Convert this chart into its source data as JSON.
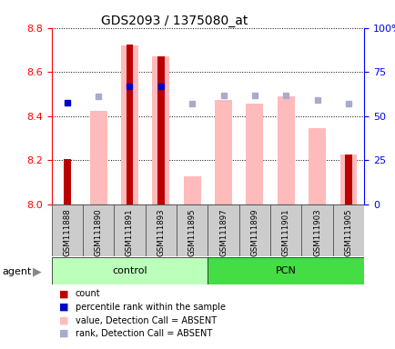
{
  "title": "GDS2093 / 1375080_at",
  "samples": [
    "GSM111888",
    "GSM111890",
    "GSM111891",
    "GSM111893",
    "GSM111895",
    "GSM111897",
    "GSM111899",
    "GSM111901",
    "GSM111903",
    "GSM111905"
  ],
  "red_bar_values": [
    8.205,
    8.0,
    8.725,
    8.67,
    8.0,
    8.0,
    8.0,
    8.0,
    8.0,
    8.225
  ],
  "pink_bar_values": [
    8.0,
    8.425,
    8.72,
    8.67,
    8.125,
    8.475,
    8.455,
    8.49,
    8.345,
    8.225
  ],
  "blue_dot_values": [
    8.46,
    null,
    8.535,
    8.535,
    null,
    null,
    null,
    null,
    null,
    null
  ],
  "lavender_dot_values": [
    null,
    8.49,
    null,
    null,
    8.455,
    8.495,
    8.495,
    8.495,
    8.475,
    8.455
  ],
  "ylim": [
    8.0,
    8.8
  ],
  "yticks_left": [
    8.0,
    8.2,
    8.4,
    8.6,
    8.8
  ],
  "yticks_right": [
    0,
    25,
    50,
    75,
    100
  ],
  "red_bar_color": "#bb0000",
  "pink_bar_color": "#ffbbbb",
  "blue_dot_color": "#0000cc",
  "lavender_dot_color": "#aaaacc",
  "control_color_light": "#ccffcc",
  "control_color_dark": "#44dd44",
  "pcn_color": "#44dd44",
  "legend_items": [
    {
      "color": "#bb0000",
      "label": "count"
    },
    {
      "color": "#0000cc",
      "label": "percentile rank within the sample"
    },
    {
      "color": "#ffbbbb",
      "label": "value, Detection Call = ABSENT"
    },
    {
      "color": "#aaaacc",
      "label": "rank, Detection Call = ABSENT"
    }
  ]
}
